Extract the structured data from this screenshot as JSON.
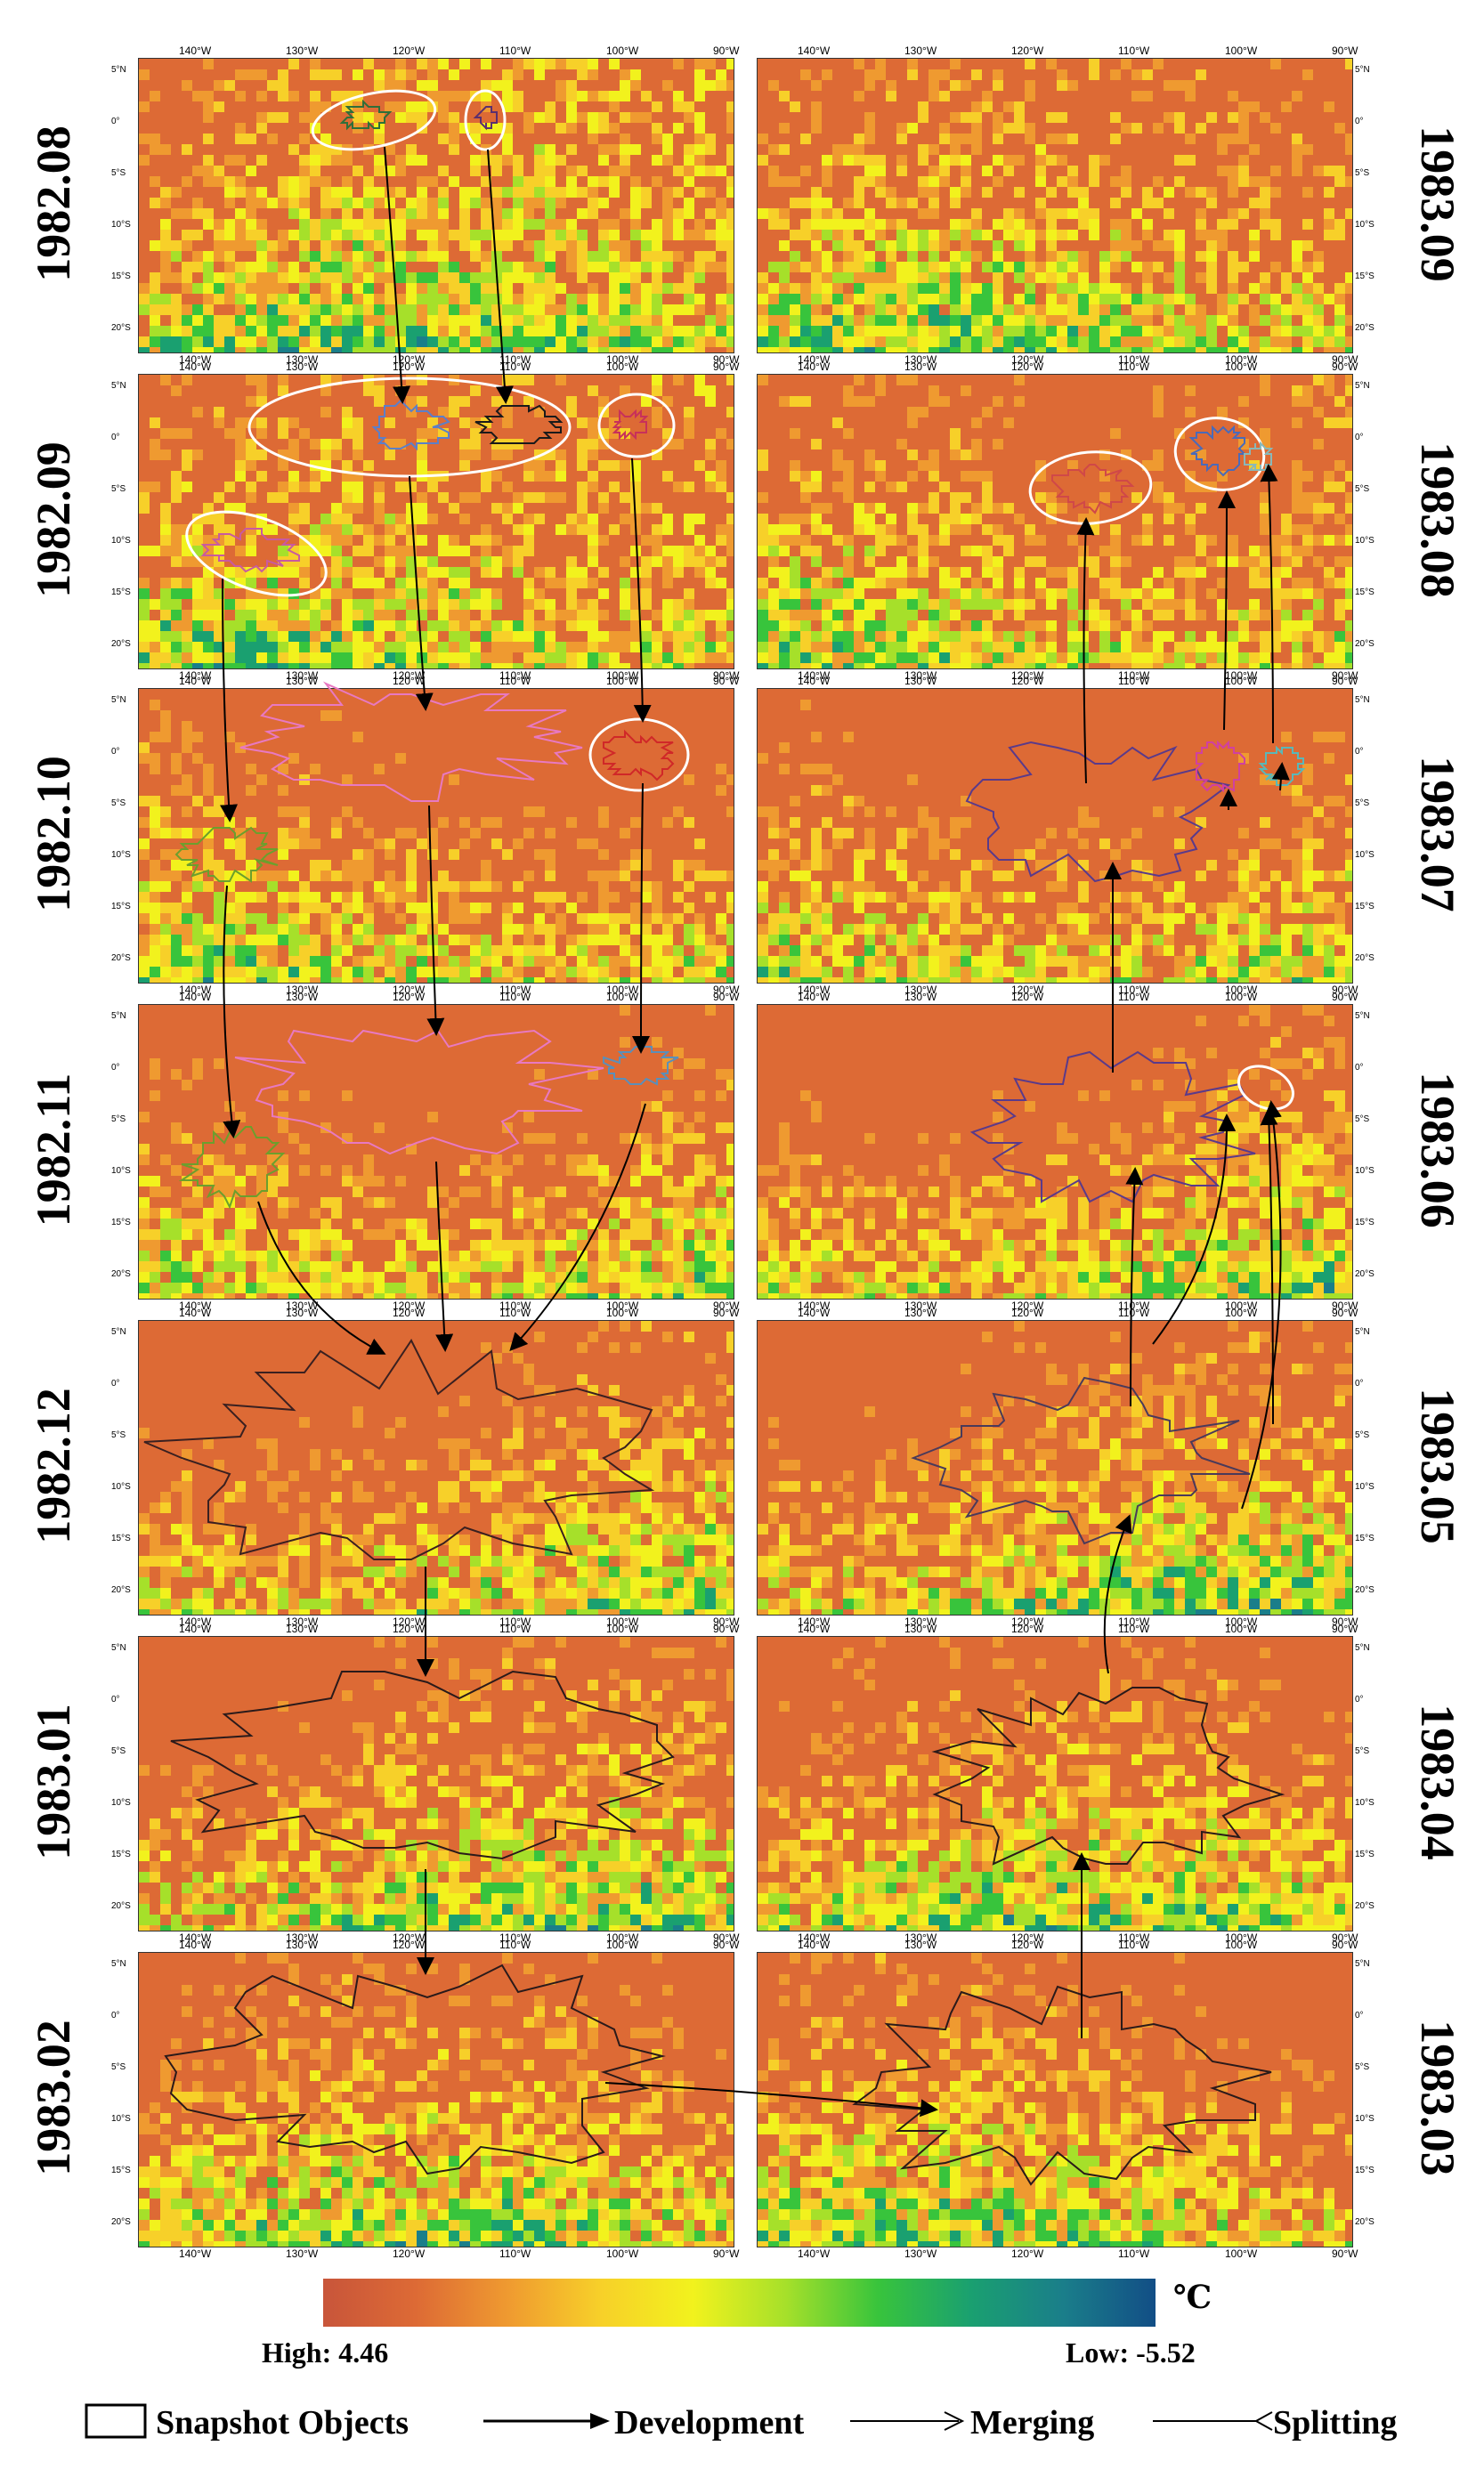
{
  "figure": {
    "panels": [
      {
        "id": "left-1",
        "side": "left",
        "label": "1982.08"
      },
      {
        "id": "left-2",
        "side": "left",
        "label": "1982.09"
      },
      {
        "id": "left-3",
        "side": "left",
        "label": "1982.10"
      },
      {
        "id": "left-4",
        "side": "left",
        "label": "1982.11"
      },
      {
        "id": "left-5",
        "side": "left",
        "label": "1982.12"
      },
      {
        "id": "left-6",
        "side": "left",
        "label": "1983.01"
      },
      {
        "id": "left-7",
        "side": "left",
        "label": "1983.02"
      },
      {
        "id": "right-1",
        "side": "right",
        "label": "1983.09"
      },
      {
        "id": "right-2",
        "side": "right",
        "label": "1983.08"
      },
      {
        "id": "right-3",
        "side": "right",
        "label": "1983.07"
      },
      {
        "id": "right-4",
        "side": "right",
        "label": "1983.06"
      },
      {
        "id": "right-5",
        "side": "right",
        "label": "1983.05"
      },
      {
        "id": "right-6",
        "side": "right",
        "label": "1983.04"
      },
      {
        "id": "right-7",
        "side": "right",
        "label": "1983.03"
      }
    ],
    "lon_ticks": [
      "140°W",
      "130°W",
      "120°W",
      "110°W",
      "100°W",
      "90°W"
    ],
    "lat_ticks": [
      "5°N",
      "0°",
      "5°S",
      "10°S",
      "15°S",
      "20°S"
    ],
    "colorbar": {
      "unit": "℃",
      "high_label": "High: 4.46",
      "low_label": "Low: -5.52",
      "high": 4.46,
      "low": -5.52,
      "colors": [
        "#c8553a",
        "#dd6a35",
        "#ef9a30",
        "#f7d029",
        "#f2f21d",
        "#a6e02a",
        "#38c43c",
        "#1aa070",
        "#1a7e8a",
        "#124e86"
      ]
    },
    "legend": {
      "snapshot": "Snapshot Objects",
      "development": "Development",
      "merging": "Merging",
      "splitting": "Splitting"
    }
  }
}
